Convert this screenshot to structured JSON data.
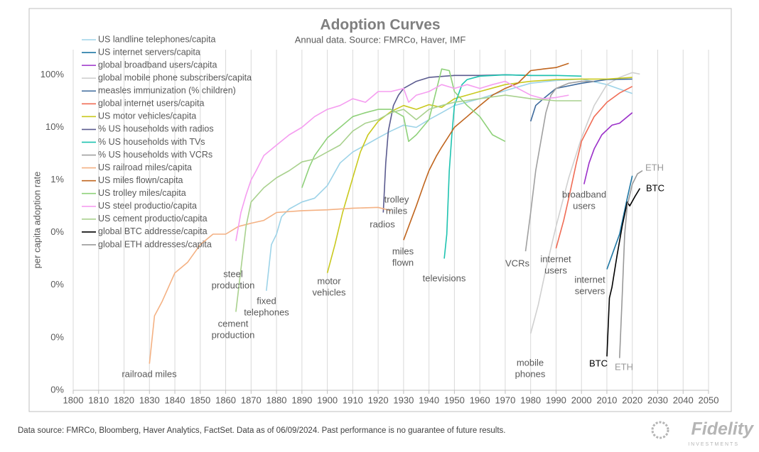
{
  "chart_data": {
    "type": "line",
    "title": "Adoption Curves",
    "subtitle": "Annual data.  Source: FMRCo, Haver, IMF",
    "y_label": "per capita adoption rate",
    "footnote": "Data source: FMRCo, Bloomberg, Haver Analytics, FactSet. Data as of 06/09/2024. Past performance is no guarantee of future results.",
    "logo": "Fidelity",
    "logo_sub": "INVESTMENTS",
    "log_scale": "y",
    "grid": "x",
    "xlim": [
      1800,
      2050
    ],
    "xticks": [
      1800,
      1810,
      1820,
      1830,
      1840,
      1850,
      1860,
      1870,
      1880,
      1890,
      1900,
      1910,
      1920,
      1930,
      1940,
      1950,
      1960,
      1970,
      1980,
      1990,
      2000,
      2010,
      2020,
      2030,
      2040,
      2050
    ],
    "ylim": [
      0.0001,
      300
    ],
    "yticks": [
      {
        "value": 100,
        "label": "100%"
      },
      {
        "value": 10,
        "label": "10%"
      },
      {
        "value": 1,
        "label": "1%"
      },
      {
        "value": 0.1,
        "label": "0%"
      },
      {
        "value": 0.01,
        "label": "0%"
      },
      {
        "value": 0.001,
        "label": "0%"
      },
      {
        "value": 0.0001,
        "label": "0%"
      }
    ],
    "series": [
      {
        "name": "US landline telephones/capita",
        "color": "#9dd3e8",
        "x": [
          1876,
          1878,
          1880,
          1882,
          1885,
          1890,
          1895,
          1900,
          1905,
          1910,
          1915,
          1920,
          1925,
          1930,
          1935,
          1940,
          1945,
          1950,
          1960,
          1970,
          1980,
          1990,
          2000,
          2010,
          2020
        ],
        "values": [
          0.0078,
          0.059,
          0.093,
          0.2,
          0.28,
          0.38,
          0.45,
          0.78,
          2.1,
          3.4,
          4.6,
          6.3,
          8.5,
          11,
          10,
          14,
          19,
          26,
          35,
          50,
          69,
          78,
          83,
          65,
          44
        ]
      },
      {
        "name": "US internet servers/capita",
        "color": "#1f77a4",
        "x": [
          2010,
          2012,
          2015,
          2018,
          2020
        ],
        "values": [
          0.02,
          0.037,
          0.093,
          0.45,
          1.2
        ]
      },
      {
        "name": "global broadband users/capita",
        "color": "#9b30c9",
        "x": [
          2001,
          2003,
          2005,
          2008,
          2012,
          2015,
          2020
        ],
        "values": [
          0.83,
          2.1,
          3.9,
          7.2,
          11,
          12,
          19
        ]
      },
      {
        "name": "global mobile phone subscribers/capita",
        "color": "#d0d0d0",
        "x": [
          1980,
          1983,
          1986,
          1990,
          1995,
          2000,
          2005,
          2010,
          2015,
          2020,
          2023
        ],
        "values": [
          0.0012,
          0.0042,
          0.02,
          0.13,
          1.1,
          6.3,
          26,
          65,
          89,
          110,
          103
        ]
      },
      {
        "name": "measles immunization (% children)",
        "color": "#3e6a9c",
        "x": [
          1980,
          1982,
          1985,
          1990,
          2000,
          2010,
          2020
        ],
        "values": [
          13,
          26,
          35,
          55,
          69,
          81,
          83
        ]
      },
      {
        "name": "global internet users/capita",
        "color": "#f06c55",
        "x": [
          1990,
          1993,
          1995,
          1998,
          2000,
          2005,
          2010,
          2015,
          2020
        ],
        "values": [
          0.05,
          0.17,
          0.45,
          2.1,
          5.4,
          16,
          30,
          45,
          60
        ]
      },
      {
        "name": "US motor vehicles/capita",
        "color": "#c9c91e",
        "x": [
          1900,
          1903,
          1906,
          1910,
          1913,
          1916,
          1920,
          1925,
          1930,
          1935,
          1940,
          1945,
          1950,
          1960,
          1970,
          1980,
          1990,
          2000,
          2010,
          2020
        ],
        "values": [
          0.017,
          0.059,
          0.24,
          1.1,
          3.4,
          7.2,
          13,
          20,
          26,
          22,
          27,
          24,
          35,
          48,
          65,
          75,
          81,
          83,
          83,
          89
        ]
      },
      {
        "name": "% US households with radios",
        "color": "#5b5b8f",
        "x": [
          1922,
          1923,
          1924,
          1926,
          1928,
          1930,
          1935,
          1940,
          1950,
          1960,
          1970,
          1980,
          1990
        ],
        "values": [
          0.24,
          2.1,
          8.5,
          26,
          41,
          55,
          75,
          89,
          97,
          97,
          100,
          97,
          97
        ]
      },
      {
        "name": "% US households with TVs",
        "color": "#1ec3b0",
        "x": [
          1946,
          1947,
          1948,
          1949,
          1950,
          1953,
          1955,
          1960,
          1970,
          1980,
          1990,
          2000
        ],
        "values": [
          0.032,
          0.093,
          1.5,
          7.2,
          26,
          65,
          81,
          94,
          100,
          97,
          97,
          94
        ]
      },
      {
        "name": "% US households with VCRs",
        "color": "#a0a0a0",
        "x": [
          1978,
          1980,
          1982,
          1984,
          1986,
          1988,
          1990,
          1995,
          2000,
          2005
        ],
        "values": [
          0.044,
          0.24,
          1.5,
          5.4,
          19,
          41,
          55,
          69,
          75,
          75
        ]
      },
      {
        "name": "US railroad miles/capita",
        "color": "#f4b183",
        "x": [
          1830,
          1832,
          1835,
          1840,
          1845,
          1850,
          1855,
          1860,
          1865,
          1870,
          1875,
          1880,
          1890,
          1900,
          1910,
          1920,
          1925
        ],
        "values": [
          0.00032,
          0.0026,
          0.0049,
          0.017,
          0.027,
          0.059,
          0.093,
          0.093,
          0.13,
          0.15,
          0.17,
          0.24,
          0.26,
          0.27,
          0.29,
          0.3,
          0.26
        ]
      },
      {
        "name": "US miles flown/capita",
        "color": "#c0651e",
        "x": [
          1930,
          1932,
          1935,
          1938,
          1940,
          1943,
          1945,
          1950,
          1955,
          1960,
          1965,
          1970,
          1975,
          1980,
          1985,
          1990,
          1995
        ],
        "values": [
          0.072,
          0.13,
          0.32,
          0.83,
          1.5,
          2.9,
          4.2,
          10,
          16,
          26,
          41,
          55,
          69,
          120,
          129,
          137,
          165
        ]
      },
      {
        "name": "US trolley miles/capita",
        "color": "#8fd17a",
        "x": [
          1890,
          1893,
          1895,
          1900,
          1905,
          1910,
          1915,
          1920,
          1925,
          1930,
          1932,
          1935,
          1940,
          1945,
          1948,
          1950,
          1955,
          1960,
          1965,
          1970
        ],
        "values": [
          0.71,
          1.8,
          2.9,
          6.3,
          10,
          16,
          19,
          22,
          22,
          16,
          5.4,
          7.2,
          14,
          129,
          120,
          48,
          26,
          16,
          7.2,
          5.4
        ]
      },
      {
        "name": "US steel productio/capita",
        "color": "#f59df0",
        "x": [
          1864,
          1866,
          1868,
          1870,
          1872,
          1875,
          1880,
          1885,
          1890,
          1895,
          1900,
          1905,
          1910,
          1915,
          1920,
          1925,
          1930,
          1932,
          1935,
          1940,
          1945,
          1950,
          1955,
          1960,
          1965,
          1970,
          1975,
          1980,
          1985,
          1990,
          1995
        ],
        "values": [
          0.069,
          0.24,
          0.52,
          1.0,
          1.5,
          2.9,
          4.6,
          7.2,
          10,
          16,
          22,
          26,
          35,
          30,
          48,
          48,
          55,
          30,
          41,
          48,
          65,
          55,
          65,
          55,
          65,
          75,
          55,
          41,
          35,
          37,
          41
        ]
      },
      {
        "name": "US cement productio/capita",
        "color": "#a9d18e",
        "x": [
          1864,
          1866,
          1868,
          1870,
          1875,
          1880,
          1885,
          1890,
          1895,
          1900,
          1905,
          1910,
          1915,
          1920,
          1925,
          1930,
          1935,
          1940,
          1945,
          1950,
          1960,
          1970,
          1980,
          1990,
          2000
        ],
        "values": [
          0.0031,
          0.02,
          0.13,
          0.38,
          0.71,
          1.1,
          1.5,
          2.2,
          2.5,
          3.4,
          4.6,
          8.5,
          12,
          14,
          19,
          22,
          14,
          22,
          26,
          30,
          35,
          41,
          35,
          32,
          32
        ]
      },
      {
        "name": "global BTC addresse/capita",
        "color": "#000000",
        "x": [
          2010,
          2011,
          2012,
          2014,
          2016,
          2018,
          2019,
          2021,
          2023
        ],
        "values": [
          0.00044,
          0.0057,
          0.0091,
          0.037,
          0.13,
          0.38,
          0.32,
          0.48,
          0.69
        ]
      },
      {
        "name": "global ETH addresses/capita",
        "color": "#999999",
        "x": [
          2015,
          2016,
          2017,
          2018,
          2020,
          2022,
          2024
        ],
        "values": [
          0.00041,
          0.0057,
          0.093,
          0.32,
          0.83,
          1.3,
          1.5
        ]
      }
    ],
    "annotations": [
      {
        "lines": [
          "railroad miles"
        ],
        "color": "#595959"
      },
      {
        "lines": [
          "steel",
          "production"
        ],
        "color": "#595959"
      },
      {
        "lines": [
          "fixed",
          "telephones"
        ],
        "color": "#595959"
      },
      {
        "lines": [
          "cement",
          "production"
        ],
        "color": "#595959"
      },
      {
        "lines": [
          "motor",
          "vehicles"
        ],
        "color": "#595959"
      },
      {
        "lines": [
          "trolley",
          "miles"
        ],
        "color": "#595959"
      },
      {
        "lines": [
          "radios"
        ],
        "color": "#595959"
      },
      {
        "lines": [
          "miles",
          "flown"
        ],
        "color": "#595959"
      },
      {
        "lines": [
          "televisions"
        ],
        "color": "#595959"
      },
      {
        "lines": [
          "VCRs"
        ],
        "color": "#595959"
      },
      {
        "lines": [
          "internet",
          "users"
        ],
        "color": "#595959"
      },
      {
        "lines": [
          "broadband",
          "users"
        ],
        "color": "#595959"
      },
      {
        "lines": [
          "internet",
          "servers"
        ],
        "color": "#595959"
      },
      {
        "lines": [
          "mobile",
          "phones"
        ],
        "color": "#595959"
      },
      {
        "lines": [
          "BTC"
        ],
        "color": "#000000"
      },
      {
        "lines": [
          "ETH"
        ],
        "color": "#999999"
      },
      {
        "lines": [
          "ETH"
        ],
        "color": "#999999"
      },
      {
        "lines": [
          "BTC"
        ],
        "color": "#000000"
      }
    ]
  }
}
